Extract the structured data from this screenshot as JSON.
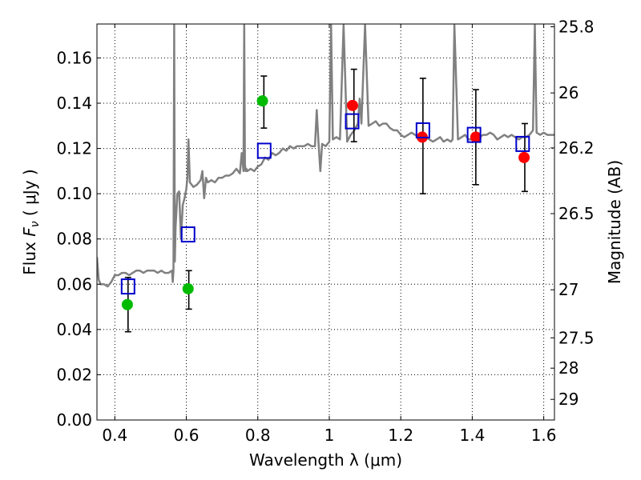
{
  "chart_data": {
    "type": "scatter",
    "xlabel": "Wavelength  λ (μm)",
    "ylabel": "Flux  Fν  ( μJy )",
    "y2label": "Magnitude (AB)",
    "xlim": [
      0.35,
      1.63
    ],
    "ylim": [
      0.0,
      0.175
    ],
    "grid": true,
    "x_ticks": [
      "0.4",
      "0.6",
      "0.8",
      "1",
      "1.2",
      "1.4",
      "1.6"
    ],
    "y_ticks": [
      "0.00",
      "0.02",
      "0.04",
      "0.06",
      "0.08",
      "0.10",
      "0.12",
      "0.14",
      "0.16"
    ],
    "y2_ticks": [
      "25.8",
      "26",
      "26.2",
      "26.5",
      "27",
      "27.5",
      "28",
      "29"
    ],
    "series": [
      {
        "kind": "spectrum",
        "color": "#808080",
        "x": [
          0.35,
          0.355,
          0.36,
          0.37,
          0.38,
          0.39,
          0.4,
          0.41,
          0.42,
          0.43,
          0.44,
          0.45,
          0.46,
          0.47,
          0.48,
          0.49,
          0.5,
          0.51,
          0.52,
          0.53,
          0.54,
          0.55,
          0.56,
          0.562,
          0.564,
          0.566,
          0.568,
          0.57,
          0.575,
          0.58,
          0.585,
          0.59,
          0.595,
          0.6,
          0.603,
          0.606,
          0.61,
          0.62,
          0.63,
          0.64,
          0.645,
          0.65,
          0.655,
          0.66,
          0.67,
          0.68,
          0.69,
          0.7,
          0.71,
          0.72,
          0.73,
          0.74,
          0.75,
          0.755,
          0.76,
          0.762,
          0.764,
          0.766,
          0.768,
          0.77,
          0.78,
          0.79,
          0.8,
          0.81,
          0.82,
          0.83,
          0.84,
          0.85,
          0.86,
          0.87,
          0.88,
          0.89,
          0.9,
          0.91,
          0.92,
          0.93,
          0.94,
          0.95,
          0.96,
          0.965,
          0.97,
          0.975,
          0.98,
          0.99,
          1.0,
          1.005,
          1.01,
          1.02,
          1.03,
          1.04,
          1.05,
          1.06,
          1.07,
          1.08,
          1.085,
          1.09,
          1.1,
          1.11,
          1.12,
          1.13,
          1.14,
          1.15,
          1.16,
          1.17,
          1.18,
          1.19,
          1.2,
          1.21,
          1.22,
          1.23,
          1.24,
          1.25,
          1.26,
          1.27,
          1.28,
          1.29,
          1.3,
          1.31,
          1.32,
          1.33,
          1.34,
          1.345,
          1.35,
          1.36,
          1.37,
          1.38,
          1.39,
          1.4,
          1.41,
          1.42,
          1.43,
          1.44,
          1.45,
          1.46,
          1.47,
          1.48,
          1.49,
          1.5,
          1.51,
          1.52,
          1.53,
          1.54,
          1.55,
          1.56,
          1.57,
          1.575,
          1.58,
          1.59,
          1.6,
          1.61,
          1.62,
          1.63
        ],
        "y": [
          0.072,
          0.062,
          0.06,
          0.06,
          0.059,
          0.061,
          0.064,
          0.064,
          0.065,
          0.065,
          0.064,
          0.065,
          0.066,
          0.066,
          0.065,
          0.066,
          0.066,
          0.066,
          0.065,
          0.066,
          0.065,
          0.065,
          0.066,
          0.061,
          0.066,
          0.1745,
          0.07,
          0.085,
          0.1,
          0.101,
          0.08,
          0.095,
          0.098,
          0.102,
          0.107,
          0.124,
          0.105,
          0.103,
          0.104,
          0.106,
          0.11,
          0.098,
          0.107,
          0.105,
          0.106,
          0.105,
          0.107,
          0.107,
          0.108,
          0.108,
          0.109,
          0.111,
          0.109,
          0.118,
          0.11,
          0.1745,
          0.113,
          0.11,
          0.111,
          0.11,
          0.111,
          0.11,
          0.112,
          0.113,
          0.116,
          0.115,
          0.118,
          0.117,
          0.118,
          0.12,
          0.119,
          0.121,
          0.12,
          0.121,
          0.121,
          0.121,
          0.122,
          0.121,
          0.121,
          0.137,
          0.122,
          0.11,
          0.122,
          0.121,
          0.123,
          0.1745,
          0.124,
          0.125,
          0.124,
          0.1745,
          0.123,
          0.126,
          0.128,
          0.131,
          0.142,
          0.131,
          0.1745,
          0.13,
          0.131,
          0.132,
          0.13,
          0.131,
          0.131,
          0.129,
          0.128,
          0.128,
          0.126,
          0.125,
          0.126,
          0.127,
          0.126,
          0.125,
          0.126,
          0.125,
          0.124,
          0.123,
          0.124,
          0.125,
          0.123,
          0.124,
          0.123,
          0.124,
          0.1745,
          0.124,
          0.125,
          0.126,
          0.124,
          0.124,
          0.125,
          0.125,
          0.126,
          0.126,
          0.127,
          0.126,
          0.124,
          0.125,
          0.126,
          0.125,
          0.126,
          0.125,
          0.124,
          0.125,
          0.125,
          0.126,
          0.128,
          0.1745,
          0.127,
          0.126,
          0.127,
          0.126,
          0.126,
          0.126
        ]
      },
      {
        "kind": "points",
        "marker": "circle",
        "color": "#00bb00",
        "x": [
          0.435,
          0.605,
          0.813
        ],
        "y": [
          0.051,
          0.058,
          0.141
        ]
      },
      {
        "kind": "points",
        "marker": "circle",
        "color": "#ff0000",
        "x": [
          1.065,
          1.26,
          1.41,
          1.545
        ],
        "y": [
          0.139,
          0.125,
          0.125,
          0.116
        ]
      },
      {
        "kind": "points",
        "marker": "open-square",
        "color": "#0000cc",
        "x": [
          0.437,
          0.605,
          0.818,
          1.064,
          1.262,
          1.405,
          1.541
        ],
        "y": [
          0.059,
          0.082,
          0.119,
          0.132,
          0.128,
          0.126,
          0.122
        ]
      },
      {
        "kind": "errorbars",
        "color": "#000000",
        "x": [
          0.437,
          0.607,
          0.817,
          1.069,
          1.262,
          1.41,
          1.547
        ],
        "ylow": [
          0.039,
          0.049,
          0.129,
          0.123,
          0.1,
          0.104,
          0.101
        ],
        "yhigh": [
          0.063,
          0.066,
          0.152,
          0.155,
          0.151,
          0.146,
          0.131
        ]
      }
    ]
  }
}
